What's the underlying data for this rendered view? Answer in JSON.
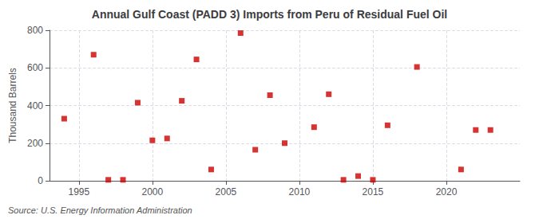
{
  "chart_data": {
    "type": "scatter",
    "title": "Annual Gulf Coast (PADD 3) Imports from Peru of Residual Fuel Oil",
    "ylabel": "Thousand Barrels",
    "source": "Source: U.S. Energy Information Administration",
    "x": [
      1994,
      1996,
      1997,
      1998,
      1999,
      2000,
      2001,
      2002,
      2003,
      2004,
      2006,
      2007,
      2008,
      2009,
      2011,
      2012,
      2013,
      2014,
      2015,
      2016,
      2018,
      2021,
      2022,
      2023
    ],
    "values": [
      330,
      670,
      5,
      5,
      415,
      215,
      225,
      425,
      645,
      60,
      785,
      165,
      455,
      200,
      285,
      460,
      5,
      25,
      5,
      295,
      605,
      60,
      270,
      270
    ],
    "color": "#cc0000",
    "marker": "square",
    "xlim": [
      1993,
      2025
    ],
    "xticks": [
      1995,
      2000,
      2005,
      2010,
      2015,
      2020
    ],
    "ylim": [
      0,
      800
    ],
    "yticks": [
      0,
      200,
      400,
      600,
      800
    ],
    "grid": true
  }
}
